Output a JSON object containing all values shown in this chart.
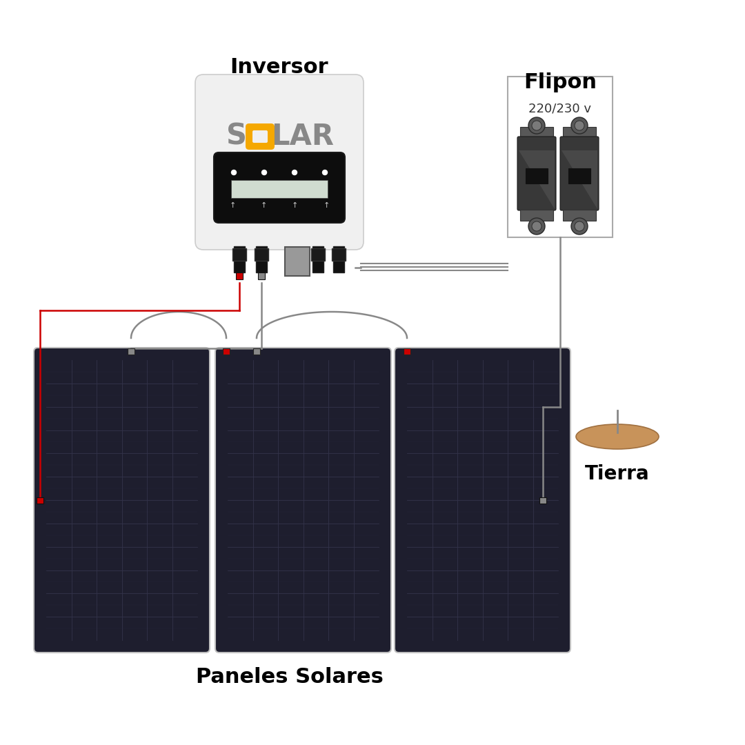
{
  "bg_color": "#ffffff",
  "inversor_label": "Inversor",
  "flipon_label": "Flipon",
  "flipon_sublabel": "220/230 v",
  "paneles_label": "Paneles Solares",
  "tierra_label": "Tierra",
  "wire_gray": "#888888",
  "wire_red": "#cc0000",
  "panel_dark": "#1e1e2e",
  "panel_frame": "#c0c0c0",
  "panel_grid": "#33334a",
  "inversor_body": "#f0f0f0",
  "inversor_display_bg": "#0d0d0d",
  "solar_gray": "#888888",
  "solar_orange": "#f5a800",
  "flipon_dark": "#383838",
  "flipon_mid": "#585858",
  "flipon_light": "#6e6e6e",
  "tierra_fill": "#c8935a",
  "tierra_edge": "#a07040",
  "pos_color": "#cc0000",
  "neg_color": "#888888"
}
